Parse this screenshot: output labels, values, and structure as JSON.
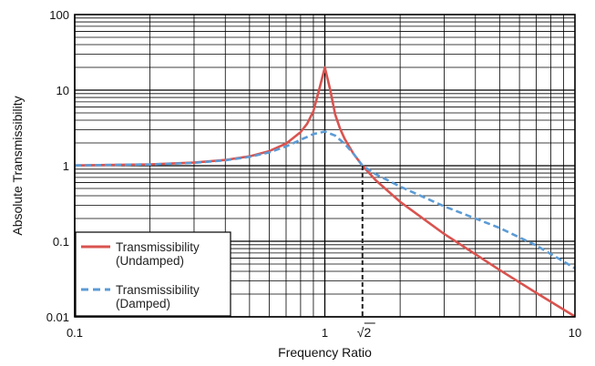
{
  "chart_data": {
    "type": "line",
    "title": "",
    "xlabel": "Frequency Ratio",
    "ylabel": "Absolute Transmissibility",
    "x_scale": "log",
    "y_scale": "log",
    "xlim": [
      0.1,
      10
    ],
    "ylim": [
      0.01,
      100
    ],
    "x_ticks": [
      {
        "value": 0.1,
        "label": "0.1"
      },
      {
        "value": 1,
        "label": "1"
      },
      {
        "value": 10,
        "label": "10"
      }
    ],
    "y_ticks": [
      {
        "value": 0.01,
        "label": "0.01"
      },
      {
        "value": 0.1,
        "label": "0.1"
      },
      {
        "value": 1,
        "label": "1"
      },
      {
        "value": 10,
        "label": "10"
      },
      {
        "value": 100,
        "label": "100"
      }
    ],
    "grid": true,
    "legend_position": "bottom-left",
    "colors": {
      "undamped": "#d9534f",
      "damped": "#5b9bd5",
      "grid": "#000000",
      "marker": "#222222"
    },
    "series": [
      {
        "name": "Transmissibility\n(Undamped)",
        "legend_lines": [
          "Transmissibility",
          "(Undamped)"
        ],
        "style": "solid",
        "x": [
          0.1,
          0.2,
          0.3,
          0.4,
          0.5,
          0.6,
          0.7,
          0.8,
          0.85,
          0.9,
          0.95,
          1.0,
          1.05,
          1.1,
          1.15,
          1.2,
          1.3,
          1.414,
          1.6,
          2,
          3,
          5,
          7,
          10
        ],
        "y": [
          1.01,
          1.04,
          1.1,
          1.19,
          1.33,
          1.56,
          1.96,
          2.78,
          3.6,
          5.26,
          10.3,
          20,
          10.2,
          4.76,
          3.1,
          2.27,
          1.45,
          1.0,
          0.64,
          0.333,
          0.125,
          0.0417,
          0.0208,
          0.0101
        ]
      },
      {
        "name": "Transmissibility\n(Damped)",
        "legend_lines": [
          "Transmissibility",
          "(Damped)"
        ],
        "style": "dashed",
        "x": [
          0.1,
          0.2,
          0.3,
          0.4,
          0.5,
          0.6,
          0.7,
          0.8,
          0.9,
          1.0,
          1.1,
          1.2,
          1.3,
          1.414,
          1.6,
          2,
          3,
          5,
          7,
          10
        ],
        "y": [
          1.01,
          1.04,
          1.09,
          1.18,
          1.31,
          1.5,
          1.8,
          2.2,
          2.62,
          2.83,
          2.5,
          1.95,
          1.45,
          1.0,
          0.77,
          0.53,
          0.29,
          0.15,
          0.088,
          0.044
        ]
      }
    ],
    "annotations": [
      {
        "type": "vline",
        "x": 1.414,
        "y_from": 0.01,
        "y_to": 1.0,
        "style": "dashed",
        "label": "2",
        "label_prefix": "√"
      }
    ]
  }
}
